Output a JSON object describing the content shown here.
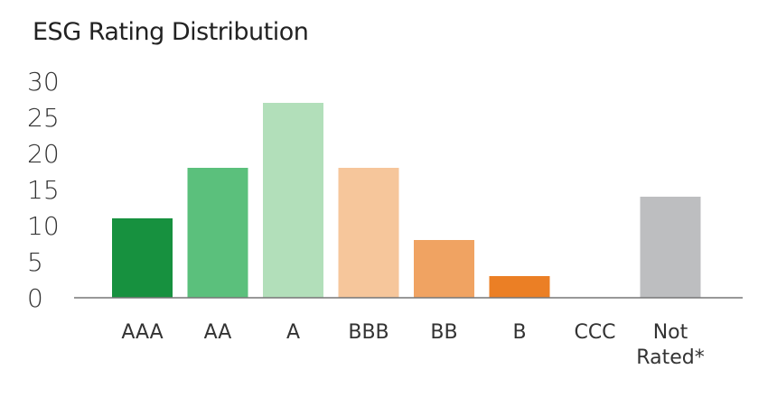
{
  "chart_data": {
    "type": "bar",
    "title": "ESG Rating Distribution",
    "categories": [
      "AAA",
      "AA",
      "A",
      "BBB",
      "BB",
      "B",
      "CCC",
      "Not Rated*"
    ],
    "category_label_lines": [
      [
        "AAA"
      ],
      [
        "AA"
      ],
      [
        "A"
      ],
      [
        "BBB"
      ],
      [
        "BB"
      ],
      [
        "B"
      ],
      [
        "CCC"
      ],
      [
        "Not",
        "Rated*"
      ]
    ],
    "values": [
      11,
      18,
      27,
      18,
      8,
      3,
      0,
      14
    ],
    "colors": [
      "#17913F",
      "#5BC07C",
      "#B2DFBA",
      "#F6C69B",
      "#F0A362",
      "#EB7F25",
      "#EB7F25",
      "#BDBEC0"
    ],
    "yticks": [
      "0",
      "5",
      "10",
      "15",
      "20",
      "25",
      "30"
    ],
    "ylim": [
      0,
      30
    ],
    "xlabel": "",
    "ylabel": "",
    "grid": false,
    "legend": "none"
  }
}
